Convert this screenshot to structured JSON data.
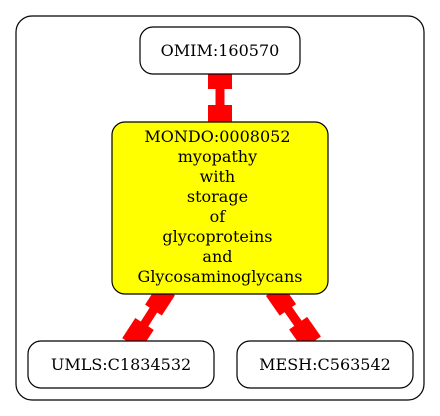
{
  "diagram": {
    "colors": {
      "edge": "#ff0000",
      "highlight_fill": "#ffff00",
      "node_fill": "#ffffff",
      "stroke": "#000000"
    },
    "nodes": {
      "omim": {
        "label": "OMIM:160570"
      },
      "mondo": {
        "id_line": "MONDO:0008052",
        "name_lines": [
          "myopathy",
          "with",
          "storage",
          "of",
          "glycoproteins",
          "and",
          "Glycosaminoglycans"
        ]
      },
      "umls": {
        "label": "UMLS:C1834532"
      },
      "mesh": {
        "label": "MESH:C563542"
      }
    },
    "edges": [
      {
        "from": "omim",
        "to": "mondo"
      },
      {
        "from": "mondo",
        "to": "umls"
      },
      {
        "from": "mondo",
        "to": "mesh"
      }
    ]
  }
}
